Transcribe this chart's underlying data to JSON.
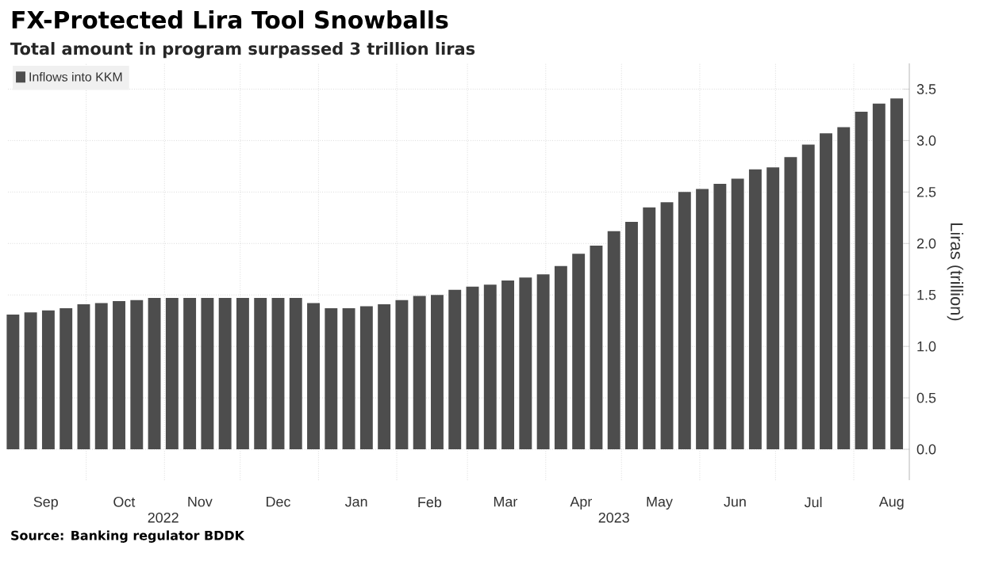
{
  "chart_data": {
    "type": "bar",
    "title": "FX-Protected Lira Tool Snowballs",
    "subtitle": "Total amount in program surpassed 3 trillion liras",
    "ylabel": "Liras (trillion)",
    "annotations": [
      "2022",
      "2023",
      "Source: Banking regulator BDDK"
    ],
    "x": [
      "2022-09-02",
      "2022-09-09",
      "2022-09-16",
      "2022-09-23",
      "2022-09-30",
      "2022-10-07",
      "2022-10-14",
      "2022-10-21",
      "2022-10-28",
      "2022-11-04",
      "2022-11-11",
      "2022-11-18",
      "2022-11-25",
      "2022-12-02",
      "2022-12-09",
      "2022-12-16",
      "2022-12-23",
      "2022-12-30",
      "2023-01-06",
      "2023-01-13",
      "2023-01-20",
      "2023-01-27",
      "2023-02-03",
      "2023-02-10",
      "2023-02-17",
      "2023-02-24",
      "2023-03-03",
      "2023-03-10",
      "2023-03-17",
      "2023-03-24",
      "2023-03-31",
      "2023-04-07",
      "2023-04-14",
      "2023-04-21",
      "2023-04-28",
      "2023-05-05",
      "2023-05-12",
      "2023-05-19",
      "2023-05-26",
      "2023-06-02",
      "2023-06-09",
      "2023-06-16",
      "2023-06-23",
      "2023-06-30",
      "2023-07-07",
      "2023-07-14",
      "2023-07-21",
      "2023-07-28",
      "2023-08-04",
      "2023-08-11",
      "2023-08-18"
    ],
    "series": [
      {
        "name": "Inflows into KKM",
        "color": "#4d4d4d",
        "values": [
          1.31,
          1.33,
          1.35,
          1.37,
          1.41,
          1.42,
          1.44,
          1.45,
          1.47,
          1.47,
          1.47,
          1.47,
          1.47,
          1.47,
          1.47,
          1.47,
          1.47,
          1.42,
          1.37,
          1.37,
          1.39,
          1.41,
          1.45,
          1.49,
          1.5,
          1.55,
          1.58,
          1.6,
          1.64,
          1.67,
          1.7,
          1.78,
          1.9,
          1.98,
          2.12,
          2.21,
          2.35,
          2.4,
          2.5,
          2.53,
          2.58,
          2.63,
          2.72,
          2.74,
          2.84,
          2.96,
          3.07,
          3.13,
          3.28,
          3.36,
          3.41
        ]
      }
    ],
    "xlim": [
      "2022-08-31",
      "2023-08-23"
    ],
    "xticks": [
      {
        "value": "2022-09-15",
        "label": "Sep"
      },
      {
        "value": "2022-10-01",
        "label": null
      },
      {
        "value": "2022-10-16",
        "label": "Oct"
      },
      {
        "value": "2022-11-01",
        "label": null
      },
      {
        "value": "2022-11-15",
        "label": "Nov"
      },
      {
        "value": "2022-12-01",
        "label": null
      },
      {
        "value": "2022-12-16",
        "label": "Dec"
      },
      {
        "value": "2023-01-01",
        "label": null
      },
      {
        "value": "2023-01-16",
        "label": "Jan"
      },
      {
        "value": "2023-02-01",
        "label": null
      },
      {
        "value": "2023-02-14",
        "label": "Feb"
      },
      {
        "value": "2023-03-01",
        "label": null
      },
      {
        "value": "2023-03-16",
        "label": "Mar"
      },
      {
        "value": "2023-04-01",
        "label": null
      },
      {
        "value": "2023-04-15",
        "label": "Apr"
      },
      {
        "value": "2023-05-01",
        "label": null
      },
      {
        "value": "2023-05-16",
        "label": "May"
      },
      {
        "value": "2023-06-01",
        "label": null
      },
      {
        "value": "2023-06-15",
        "label": "Jun"
      },
      {
        "value": "2023-07-01",
        "label": null
      },
      {
        "value": "2023-07-16",
        "label": "Jul"
      },
      {
        "value": "2023-08-01",
        "label": null
      },
      {
        "value": "2023-08-16",
        "label": "Aug"
      }
    ],
    "ylim": [
      -0.3,
      3.75
    ],
    "yticks": [
      {
        "value": 0,
        "label": "0.0"
      },
      {
        "value": 0.5,
        "label": "0.5"
      },
      {
        "value": 1,
        "label": "1.0"
      },
      {
        "value": 1.5,
        "label": "1.5"
      },
      {
        "value": 2,
        "label": "2.0"
      },
      {
        "value": 2.5,
        "label": "2.5"
      },
      {
        "value": 3,
        "label": "3.0"
      },
      {
        "value": 3.5,
        "label": "3.5"
      }
    ],
    "grid": true,
    "legend": "top left"
  }
}
